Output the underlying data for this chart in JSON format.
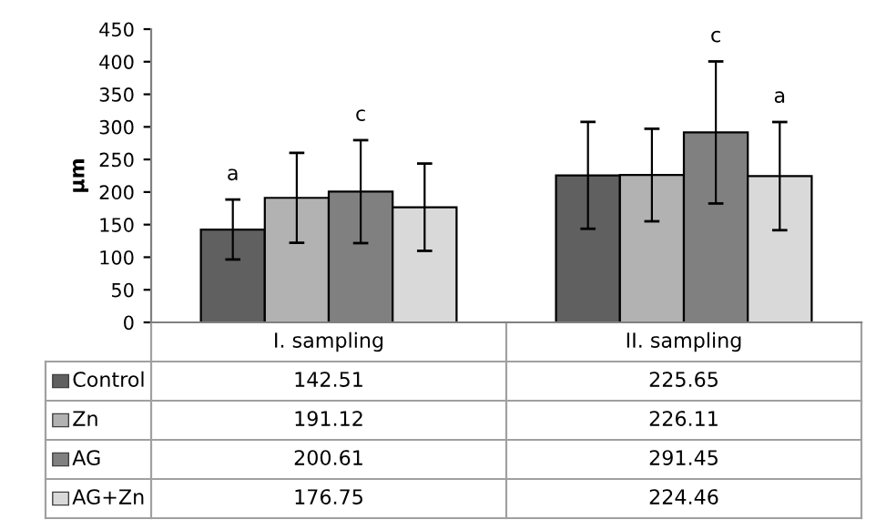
{
  "chart_data": {
    "type": "bar",
    "ylabel": "µm",
    "categories": [
      "I. sampling",
      "II. sampling"
    ],
    "series": [
      {
        "name": "Control",
        "color": "#606060",
        "values": [
          142.51,
          225.65
        ],
        "errors": [
          46,
          82
        ]
      },
      {
        "name": "Zn",
        "color": "#b2b2b2",
        "values": [
          191.12,
          226.11
        ],
        "errors": [
          69,
          71
        ]
      },
      {
        "name": "AG",
        "color": "#808080",
        "values": [
          200.61,
          291.45
        ],
        "errors": [
          79,
          109
        ]
      },
      {
        "name": "AG+Zn",
        "color": "#d9d9d9",
        "values": [
          176.75,
          224.46
        ],
        "errors": [
          67,
          83
        ]
      }
    ],
    "ylim": [
      0,
      450
    ],
    "yticks": [
      0,
      50,
      100,
      150,
      200,
      250,
      300,
      350,
      400,
      450
    ],
    "grid": false,
    "legend": "bottom",
    "data_labels": true,
    "tick_labels": "y",
    "annotations": [
      "a",
      "c",
      "c",
      "a"
    ]
  }
}
